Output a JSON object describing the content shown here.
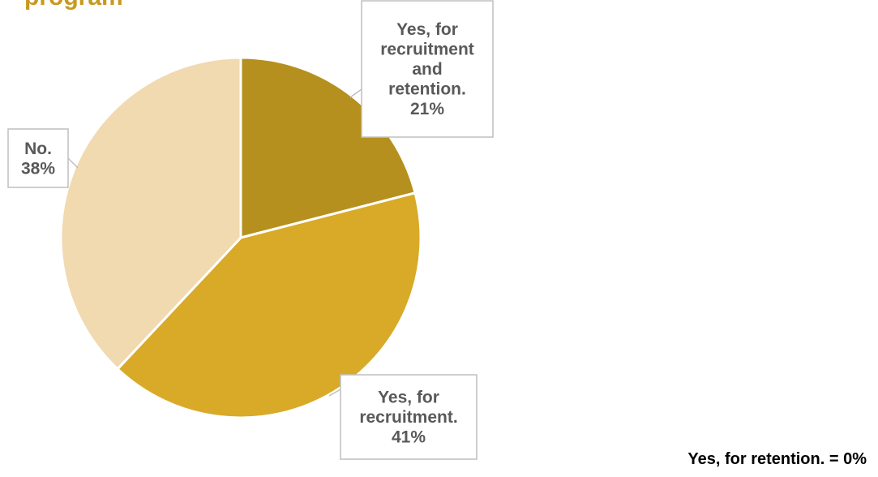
{
  "title_fragment": "program",
  "footnote": "Yes, for retention. = 0%",
  "colors": {
    "slice_recruitment_retention": "#b5901e",
    "slice_recruitment": "#d8aa28",
    "slice_no": "#f1d9b0",
    "title": "#c8991e"
  },
  "chart_data": {
    "type": "pie",
    "slices": [
      {
        "label": "Yes, for recruitment and retention.",
        "value": 21,
        "display": "21%",
        "color": "#b5901e"
      },
      {
        "label": "Yes, for recruitment.",
        "value": 41,
        "display": "41%",
        "color": "#d8aa28"
      },
      {
        "label": "No.",
        "value": 38,
        "display": "38%",
        "color": "#f1d9b0"
      },
      {
        "label": "Yes, for retention.",
        "value": 0,
        "display": "0%",
        "color": "#c9a227"
      }
    ],
    "labels": [
      {
        "lines": [
          "Yes, for",
          "recruitment",
          "and",
          "retention.",
          "21%"
        ]
      },
      {
        "lines": [
          "Yes, for",
          "recruitment.",
          "41%"
        ]
      },
      {
        "lines": [
          "No.",
          "38%"
        ]
      }
    ],
    "start_angle": "top (12 o'clock)",
    "direction": "clockwise"
  }
}
